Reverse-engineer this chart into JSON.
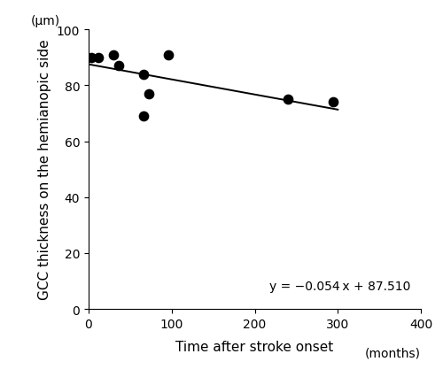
{
  "x_data": [
    3,
    12,
    30,
    36,
    66,
    66,
    72,
    96,
    240,
    294
  ],
  "y_data": [
    90,
    90,
    91,
    87,
    84,
    69,
    77,
    91,
    75,
    74
  ],
  "slope": -0.054,
  "intercept": 87.51,
  "x_line_start": 0,
  "x_line_end": 300,
  "xlabel": "Time after stroke onset",
  "xlabel_unit": "(months)",
  "ylabel": "GCC thickness on the hemianopic side",
  "ylabel_unit": "(μm)",
  "equation": "y = −0.054 x + 87.510",
  "xlim": [
    0,
    400
  ],
  "ylim": [
    0,
    100
  ],
  "xticks": [
    0,
    100,
    200,
    300,
    400
  ],
  "yticks": [
    0,
    20,
    40,
    60,
    80,
    100
  ],
  "point_color": "#000000",
  "line_color": "#000000",
  "background_color": "#ffffff",
  "point_size": 55,
  "line_width": 1.4
}
